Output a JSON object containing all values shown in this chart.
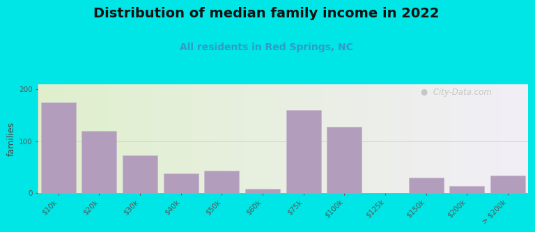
{
  "title": "Distribution of median family income in 2022",
  "subtitle": "All residents in Red Springs, NC",
  "ylabel": "families",
  "bar_color": "#b39dbd",
  "bar_edge_color": "#c8b8d0",
  "categories": [
    "$10k",
    "$20k",
    "$30k",
    "$40k",
    "$50k",
    "$60k",
    "$75k",
    "$100k",
    "$125k",
    "$150k",
    "$200k",
    "> $200k"
  ],
  "values": [
    175,
    120,
    72,
    38,
    43,
    8,
    160,
    128,
    0,
    30,
    14,
    34
  ],
  "ylim": [
    0,
    210
  ],
  "yticks": [
    0,
    100,
    200
  ],
  "background_outer": "#00e5e5",
  "background_inner_left": "#dff0cc",
  "background_inner_right": "#f2eef7",
  "watermark": "  City-Data.com",
  "watermark_icon": "●",
  "title_fontsize": 14,
  "subtitle_fontsize": 10,
  "subtitle_color": "#3399cc",
  "tick_label_fontsize": 7.5,
  "ylabel_fontsize": 9
}
